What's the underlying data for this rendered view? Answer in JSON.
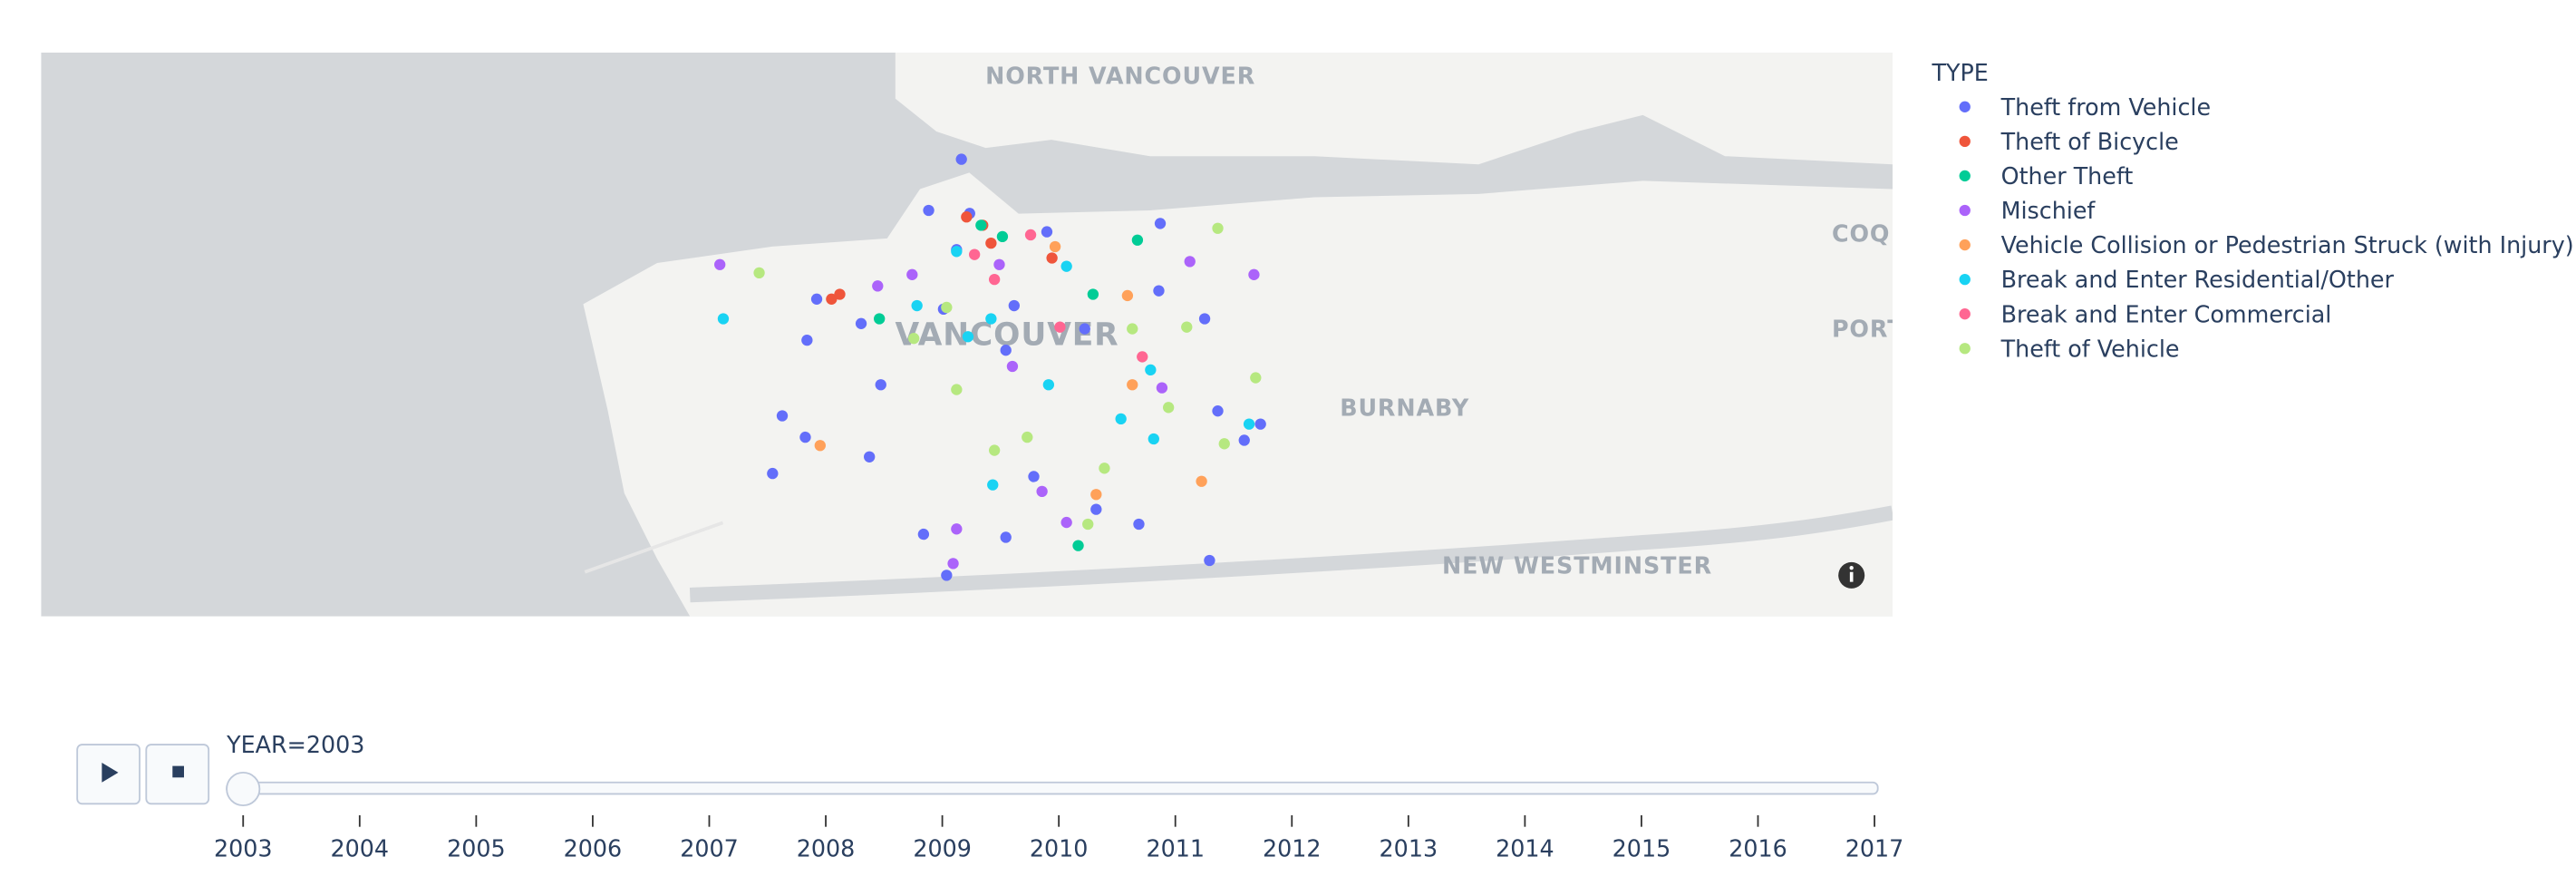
{
  "chart_data": {
    "type": "scatter_map",
    "legend_title": "TYPE",
    "xlim": [
      -123.448,
      -122.798
    ],
    "ylim": [
      49.198,
      49.327
    ],
    "map_labels": [
      "NORTH VANCOUVER",
      "VANCOUVER",
      "BURNABY",
      "NEW WESTMINSTER",
      "COQ",
      "PORT"
    ],
    "series": [
      {
        "name": "Theft from Vehicle",
        "color": "#636efa",
        "lon": [
          -123.1249,
          -123.1364,
          -123.122,
          -123.1266,
          -123.0949,
          -123.0551,
          -123.0556,
          -123.1757,
          -123.1791,
          -123.1532,
          -123.1878,
          -123.1912,
          -123.1382,
          -123.1301,
          -123.1093,
          -123.0995,
          -123.0776,
          -123.0626,
          -123.0378,
          -123.0349,
          -123.0256,
          -123.0199,
          -123.0395,
          -123.1093,
          -123.1064,
          -123.1312,
          -123.1572,
          -123.1601,
          -123.0816,
          -123.1797
        ],
        "lat": [
          49.3026,
          49.2909,
          49.2902,
          49.2819,
          49.286,
          49.2879,
          49.2725,
          49.2706,
          49.2612,
          49.251,
          49.2439,
          49.2307,
          49.2168,
          49.2074,
          49.2161,
          49.23,
          49.2225,
          49.2191,
          49.2108,
          49.245,
          49.2383,
          49.242,
          49.2661,
          49.2589,
          49.2691,
          49.2683,
          49.2345,
          49.265,
          49.2638,
          49.239
        ]
      },
      {
        "name": "Theft of Bicycle",
        "color": "#ef553b",
        "lon": [
          -123.1705,
          -123.1676,
          -123.1231,
          -123.1145,
          -123.0931,
          -123.1174
        ],
        "lat": [
          49.2706,
          49.2717,
          49.2894,
          49.2834,
          49.28,
          49.2875
        ]
      },
      {
        "name": "Other Theft",
        "color": "#00cc96",
        "lon": [
          -123.0787,
          -123.1537,
          -123.118,
          -123.1105,
          -123.0631,
          -123.0839
        ],
        "lat": [
          49.2717,
          49.2661,
          49.2875,
          49.2849,
          49.2841,
          49.2142
        ]
      },
      {
        "name": "Mischief",
        "color": "#ab63fa",
        "lon": [
          -123.2097,
          -123.1543,
          -123.1422,
          -123.1116,
          -123.0447,
          -123.0222,
          -123.107,
          -123.0545,
          -123.0966,
          -123.088,
          -123.1266,
          -123.1278
        ],
        "lat": [
          49.2785,
          49.2736,
          49.2762,
          49.2785,
          49.2792,
          49.2762,
          49.2552,
          49.2503,
          49.2266,
          49.2195,
          49.218,
          49.2101
        ]
      },
      {
        "name": "Vehicle Collision or Pedestrian Struck (with Injury)",
        "color": "#ffa15a",
        "lon": [
          -123.1745,
          -123.0649,
          -123.0406,
          -123.0776,
          -123.092,
          -123.0666
        ],
        "lat": [
          49.2371,
          49.251,
          49.2289,
          49.2259,
          49.2826,
          49.2714
        ]
      },
      {
        "name": "Break and Enter Residential/Other",
        "color": "#19d3f3",
        "lon": [
          -123.2085,
          -123.1405,
          -123.1266,
          -123.1145,
          -123.1226,
          -123.088,
          -123.0943,
          -123.0689,
          -123.0574,
          -123.1139,
          -123.0585,
          -123.0239
        ],
        "lat": [
          49.2661,
          49.2691,
          49.2815,
          49.2661,
          49.262,
          49.2781,
          49.251,
          49.2432,
          49.2386,
          49.2281,
          49.2544,
          49.242
        ]
      },
      {
        "name": "Break and Enter Commercial",
        "color": "#ff6692",
        "lon": [
          -123.1006,
          -123.0903,
          -123.1133,
          -123.1203,
          -123.0614
        ],
        "lat": [
          49.2853,
          49.2642,
          49.2751,
          49.2808,
          49.2574
        ]
      },
      {
        "name": "Theft of Vehicle",
        "color": "#b6e880",
        "lon": [
          -123.1959,
          -123.0349,
          -123.1301,
          -123.1416,
          -123.1266,
          -123.0649,
          -123.0458,
          -123.0216,
          -123.1133,
          -123.1018,
          -123.0747,
          -123.0805,
          -123.0326,
          -123.0522
        ],
        "lat": [
          49.2766,
          49.2868,
          49.2687,
          49.2616,
          49.2499,
          49.2638,
          49.2642,
          49.2526,
          49.236,
          49.239,
          49.2319,
          49.2191,
          49.2375,
          49.2458
        ]
      }
    ],
    "slider": {
      "current_label": "YEAR=2003",
      "steps": [
        2003,
        2004,
        2005,
        2006,
        2007,
        2008,
        2009,
        2010,
        2011,
        2012,
        2013,
        2014,
        2015,
        2016,
        2017
      ]
    }
  }
}
